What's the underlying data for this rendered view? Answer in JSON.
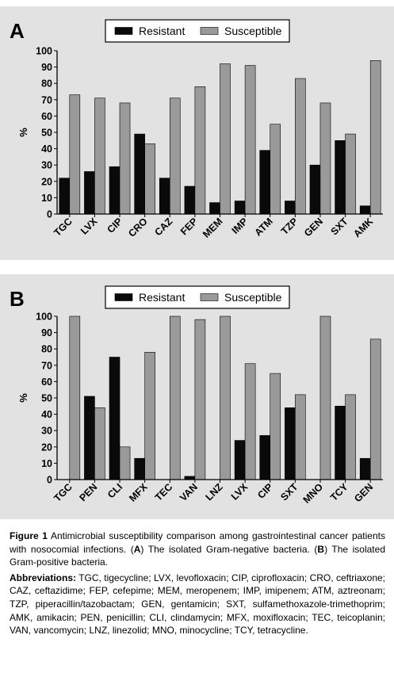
{
  "panels": [
    {
      "letter": "A",
      "legend": [
        "Resistant",
        "Susceptible"
      ],
      "ylabel": "%",
      "ticks": [
        "0",
        "10",
        "20",
        "30",
        "40",
        "50",
        "60",
        "70",
        "80",
        "90",
        "100"
      ]
    },
    {
      "letter": "B",
      "legend": [
        "Resistant",
        "Susceptible"
      ],
      "ylabel": "%",
      "ticks": [
        "0",
        "10",
        "20",
        "30",
        "40",
        "50",
        "60",
        "70",
        "80",
        "90",
        "100"
      ]
    }
  ],
  "colors": {
    "resistant": "#0a0a0a",
    "susceptible": "#9a9a9a",
    "panel_bg": "#e2e2e2"
  },
  "chart_data": [
    {
      "type": "bar",
      "title": "A",
      "ylabel": "%",
      "ylim": [
        0,
        100
      ],
      "legend_position": "top",
      "categories": [
        "TGC",
        "LVX",
        "CIP",
        "CRO",
        "CAZ",
        "FEP",
        "MEM",
        "IMP",
        "ATM",
        "TZP",
        "GEN",
        "SXT",
        "AMK"
      ],
      "series": [
        {
          "name": "Resistant",
          "values": [
            22,
            26,
            29,
            49,
            22,
            17,
            7,
            8,
            39,
            8,
            30,
            45,
            5
          ]
        },
        {
          "name": "Susceptible",
          "values": [
            73,
            71,
            68,
            43,
            71,
            78,
            92,
            91,
            55,
            83,
            68,
            49,
            94
          ]
        }
      ]
    },
    {
      "type": "bar",
      "title": "B",
      "ylabel": "%",
      "ylim": [
        0,
        100
      ],
      "legend_position": "top",
      "categories": [
        "TGC",
        "PEN",
        "CLI",
        "MFX",
        "TEC",
        "VAN",
        "LNZ",
        "LVX",
        "CIP",
        "SXT",
        "MNO",
        "TCY",
        "GEN"
      ],
      "series": [
        {
          "name": "Resistant",
          "values": [
            0,
            51,
            75,
            13,
            0,
            2,
            0,
            24,
            27,
            44,
            0,
            45,
            13
          ]
        },
        {
          "name": "Susceptible",
          "values": [
            100,
            44,
            20,
            78,
            100,
            98,
            100,
            71,
            65,
            52,
            100,
            52,
            86
          ]
        }
      ]
    }
  ],
  "caption": {
    "figure_label": "Figure 1",
    "text_1": " Antimicrobial susceptibility comparison among gastrointestinal cancer patients with nosocomial infections. (",
    "bold_a": "A",
    "text_2": ") The isolated Gram-negative bacteria. (",
    "bold_b": "B",
    "text_3": ") The isolated Gram-positive bacteria.",
    "abbrev_label": "Abbreviations:",
    "abbrev_text": " TGC, tigecycline; LVX, levofloxacin; CIP, ciprofloxacin; CRO, ceftriaxone; CAZ, ceftazidime; FEP, cefepime; MEM, meropenem; IMP, imipenem; ATM, aztreonam; TZP, piperacillin/tazobactam; GEN, gentamicin; SXT, sulfamethoxazole-trimethoprim; AMK, amikacin; PEN, penicillin; CLI, clindamycin; MFX, moxifloxacin; TEC, teicoplanin; VAN, vancomycin; LNZ, linezolid; MNO, minocycline; TCY, tetracycline."
  }
}
